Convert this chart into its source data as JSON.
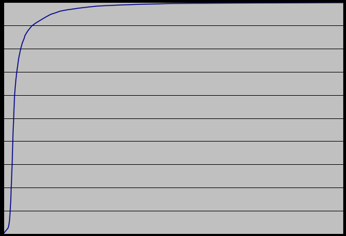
{
  "title": "",
  "xlabel": "",
  "ylabel": "",
  "xlim": [
    0,
    1800
  ],
  "ylim": [
    0,
    1.0
  ],
  "background_color": "#000000",
  "plot_bg_color": "#c0c0c0",
  "line_color": "#00008b",
  "line_width": 1.0,
  "grid_color": "#000000",
  "grid_linewidth": 0.6,
  "yticks": [
    0.0,
    0.1,
    0.2,
    0.3,
    0.4,
    0.5,
    0.6,
    0.7,
    0.8,
    0.9,
    1.0
  ],
  "curve_x": [
    0,
    5,
    10,
    15,
    20,
    25,
    28,
    30,
    33,
    35,
    38,
    40,
    42,
    45,
    48,
    50,
    55,
    57,
    60,
    65,
    70,
    75,
    80,
    85,
    90,
    100,
    110,
    113,
    120,
    130,
    140,
    150,
    170,
    200,
    227,
    250,
    280,
    300,
    340,
    400,
    450,
    500,
    600,
    700,
    800,
    900,
    1000,
    1200,
    1500,
    1800
  ],
  "curve_y": [
    0.0,
    0.005,
    0.01,
    0.015,
    0.02,
    0.025,
    0.035,
    0.045,
    0.065,
    0.09,
    0.13,
    0.175,
    0.22,
    0.28,
    0.35,
    0.42,
    0.52,
    0.565,
    0.61,
    0.66,
    0.695,
    0.725,
    0.755,
    0.775,
    0.795,
    0.825,
    0.845,
    0.855,
    0.865,
    0.878,
    0.888,
    0.898,
    0.91,
    0.925,
    0.938,
    0.948,
    0.956,
    0.962,
    0.968,
    0.975,
    0.98,
    0.984,
    0.988,
    0.991,
    0.993,
    0.995,
    0.996,
    0.997,
    0.998,
    0.999
  ]
}
